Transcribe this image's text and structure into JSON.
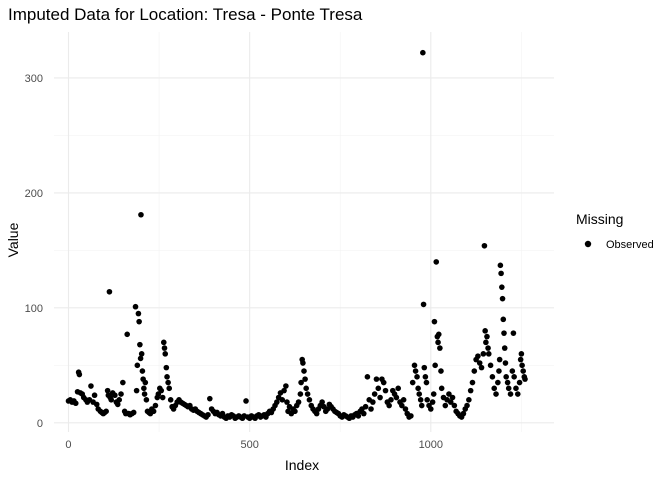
{
  "chart_data": {
    "type": "scatter",
    "title": "Imputed Data for Location: Tresa - Ponte Tresa",
    "xlabel": "Index",
    "ylabel": "Value",
    "xlim": [
      -40,
      1340
    ],
    "ylim": [
      -8,
      340
    ],
    "x_ticks": [
      0,
      500,
      1000
    ],
    "y_ticks": [
      0,
      100,
      200,
      300
    ],
    "grid": true,
    "legend": {
      "title": "Missing",
      "position": "right",
      "entries": [
        {
          "label": "Observed",
          "color": "#000000"
        }
      ]
    },
    "series": [
      {
        "name": "Observed",
        "color": "#000000",
        "points": [
          [
            0,
            19
          ],
          [
            5,
            20
          ],
          [
            10,
            18
          ],
          [
            15,
            19
          ],
          [
            20,
            17
          ],
          [
            25,
            27
          ],
          [
            28,
            44
          ],
          [
            30,
            42
          ],
          [
            33,
            26
          ],
          [
            38,
            25
          ],
          [
            42,
            22
          ],
          [
            48,
            20
          ],
          [
            52,
            18
          ],
          [
            58,
            20
          ],
          [
            62,
            32
          ],
          [
            68,
            18
          ],
          [
            72,
            24
          ],
          [
            78,
            16
          ],
          [
            82,
            12
          ],
          [
            88,
            10
          ],
          [
            92,
            9
          ],
          [
            96,
            8
          ],
          [
            100,
            9
          ],
          [
            104,
            10
          ],
          [
            108,
            28
          ],
          [
            110,
            24
          ],
          [
            113,
            114
          ],
          [
            115,
            22
          ],
          [
            118,
            20
          ],
          [
            122,
            26
          ],
          [
            128,
            24
          ],
          [
            132,
            18
          ],
          [
            136,
            16
          ],
          [
            140,
            20
          ],
          [
            145,
            25
          ],
          [
            150,
            35
          ],
          [
            155,
            10
          ],
          [
            158,
            8
          ],
          [
            162,
            77
          ],
          [
            166,
            8
          ],
          [
            170,
            7
          ],
          [
            175,
            8
          ],
          [
            180,
            9
          ],
          [
            185,
            101
          ],
          [
            188,
            28
          ],
          [
            190,
            50
          ],
          [
            193,
            95
          ],
          [
            195,
            88
          ],
          [
            197,
            68
          ],
          [
            199,
            56
          ],
          [
            200,
            181
          ],
          [
            202,
            60
          ],
          [
            204,
            45
          ],
          [
            206,
            38
          ],
          [
            208,
            30
          ],
          [
            210,
            25
          ],
          [
            212,
            35
          ],
          [
            215,
            20
          ],
          [
            218,
            10
          ],
          [
            222,
            9
          ],
          [
            226,
            8
          ],
          [
            230,
            12
          ],
          [
            235,
            10
          ],
          [
            240,
            15
          ],
          [
            245,
            22
          ],
          [
            248,
            25
          ],
          [
            252,
            30
          ],
          [
            256,
            28
          ],
          [
            260,
            22
          ],
          [
            263,
            70
          ],
          [
            265,
            65
          ],
          [
            267,
            60
          ],
          [
            270,
            48
          ],
          [
            272,
            40
          ],
          [
            275,
            35
          ],
          [
            278,
            30
          ],
          [
            282,
            20
          ],
          [
            286,
            14
          ],
          [
            290,
            12
          ],
          [
            295,
            15
          ],
          [
            300,
            18
          ],
          [
            305,
            20
          ],
          [
            310,
            18
          ],
          [
            315,
            17
          ],
          [
            320,
            16
          ],
          [
            325,
            15
          ],
          [
            330,
            14
          ],
          [
            335,
            15
          ],
          [
            340,
            12
          ],
          [
            345,
            11
          ],
          [
            350,
            12
          ],
          [
            355,
            10
          ],
          [
            360,
            9
          ],
          [
            365,
            8
          ],
          [
            370,
            7
          ],
          [
            375,
            6
          ],
          [
            380,
            5
          ],
          [
            385,
            7
          ],
          [
            390,
            21
          ],
          [
            395,
            12
          ],
          [
            400,
            10
          ],
          [
            405,
            8
          ],
          [
            410,
            9
          ],
          [
            415,
            7
          ],
          [
            420,
            6
          ],
          [
            425,
            8
          ],
          [
            430,
            5
          ],
          [
            435,
            4
          ],
          [
            440,
            6
          ],
          [
            445,
            5
          ],
          [
            450,
            7
          ],
          [
            455,
            6
          ],
          [
            460,
            4
          ],
          [
            465,
            5
          ],
          [
            470,
            6
          ],
          [
            475,
            5
          ],
          [
            480,
            4
          ],
          [
            485,
            6
          ],
          [
            490,
            19
          ],
          [
            495,
            5
          ],
          [
            500,
            4
          ],
          [
            505,
            6
          ],
          [
            510,
            5
          ],
          [
            515,
            4
          ],
          [
            520,
            6
          ],
          [
            525,
            7
          ],
          [
            530,
            5
          ],
          [
            535,
            6
          ],
          [
            540,
            7
          ],
          [
            545,
            5
          ],
          [
            550,
            8
          ],
          [
            555,
            10
          ],
          [
            560,
            9
          ],
          [
            565,
            12
          ],
          [
            570,
            15
          ],
          [
            575,
            18
          ],
          [
            580,
            22
          ],
          [
            585,
            26
          ],
          [
            590,
            20
          ],
          [
            595,
            28
          ],
          [
            600,
            32
          ],
          [
            603,
            18
          ],
          [
            606,
            10
          ],
          [
            610,
            14
          ],
          [
            615,
            8
          ],
          [
            620,
            12
          ],
          [
            625,
            10
          ],
          [
            630,
            15
          ],
          [
            635,
            18
          ],
          [
            640,
            25
          ],
          [
            642,
            35
          ],
          [
            645,
            55
          ],
          [
            647,
            52
          ],
          [
            650,
            45
          ],
          [
            653,
            38
          ],
          [
            656,
            30
          ],
          [
            660,
            25
          ],
          [
            665,
            20
          ],
          [
            670,
            15
          ],
          [
            675,
            12
          ],
          [
            680,
            10
          ],
          [
            685,
            8
          ],
          [
            690,
            12
          ],
          [
            695,
            15
          ],
          [
            700,
            18
          ],
          [
            705,
            14
          ],
          [
            710,
            10
          ],
          [
            715,
            12
          ],
          [
            720,
            16
          ],
          [
            725,
            14
          ],
          [
            730,
            12
          ],
          [
            735,
            10
          ],
          [
            740,
            9
          ],
          [
            745,
            8
          ],
          [
            750,
            6
          ],
          [
            755,
            5
          ],
          [
            760,
            7
          ],
          [
            765,
            6
          ],
          [
            770,
            5
          ],
          [
            775,
            4
          ],
          [
            780,
            6
          ],
          [
            785,
            5
          ],
          [
            790,
            7
          ],
          [
            795,
            8
          ],
          [
            800,
            6
          ],
          [
            805,
            10
          ],
          [
            810,
            12
          ],
          [
            815,
            8
          ],
          [
            820,
            14
          ],
          [
            825,
            40
          ],
          [
            830,
            20
          ],
          [
            835,
            12
          ],
          [
            840,
            18
          ],
          [
            845,
            25
          ],
          [
            850,
            38
          ],
          [
            855,
            30
          ],
          [
            860,
            22
          ],
          [
            865,
            38
          ],
          [
            870,
            35
          ],
          [
            875,
            28
          ],
          [
            880,
            18
          ],
          [
            885,
            15
          ],
          [
            890,
            20
          ],
          [
            895,
            28
          ],
          [
            900,
            25
          ],
          [
            905,
            22
          ],
          [
            910,
            30
          ],
          [
            915,
            18
          ],
          [
            920,
            15
          ],
          [
            925,
            20
          ],
          [
            930,
            12
          ],
          [
            935,
            8
          ],
          [
            940,
            5
          ],
          [
            945,
            6
          ],
          [
            950,
            35
          ],
          [
            955,
            50
          ],
          [
            958,
            45
          ],
          [
            962,
            40
          ],
          [
            965,
            30
          ],
          [
            968,
            25
          ],
          [
            972,
            20
          ],
          [
            975,
            15
          ],
          [
            978,
            322
          ],
          [
            980,
            103
          ],
          [
            982,
            48
          ],
          [
            985,
            40
          ],
          [
            988,
            35
          ],
          [
            990,
            20
          ],
          [
            995,
            15
          ],
          [
            1000,
            12
          ],
          [
            1005,
            18
          ],
          [
            1008,
            25
          ],
          [
            1010,
            88
          ],
          [
            1012,
            50
          ],
          [
            1015,
            140
          ],
          [
            1018,
            75
          ],
          [
            1020,
            70
          ],
          [
            1022,
            77
          ],
          [
            1025,
            65
          ],
          [
            1028,
            45
          ],
          [
            1030,
            30
          ],
          [
            1035,
            22
          ],
          [
            1040,
            15
          ],
          [
            1045,
            20
          ],
          [
            1050,
            25
          ],
          [
            1055,
            18
          ],
          [
            1060,
            22
          ],
          [
            1065,
            15
          ],
          [
            1070,
            10
          ],
          [
            1075,
            8
          ],
          [
            1080,
            6
          ],
          [
            1085,
            5
          ],
          [
            1090,
            8
          ],
          [
            1095,
            12
          ],
          [
            1100,
            15
          ],
          [
            1105,
            20
          ],
          [
            1110,
            28
          ],
          [
            1115,
            35
          ],
          [
            1120,
            45
          ],
          [
            1125,
            55
          ],
          [
            1130,
            58
          ],
          [
            1135,
            52
          ],
          [
            1140,
            48
          ],
          [
            1145,
            60
          ],
          [
            1148,
            154
          ],
          [
            1150,
            80
          ],
          [
            1152,
            70
          ],
          [
            1155,
            75
          ],
          [
            1158,
            65
          ],
          [
            1160,
            60
          ],
          [
            1165,
            50
          ],
          [
            1170,
            40
          ],
          [
            1175,
            30
          ],
          [
            1180,
            25
          ],
          [
            1185,
            35
          ],
          [
            1188,
            45
          ],
          [
            1190,
            55
          ],
          [
            1192,
            137
          ],
          [
            1194,
            130
          ],
          [
            1196,
            118
          ],
          [
            1198,
            108
          ],
          [
            1200,
            90
          ],
          [
            1202,
            78
          ],
          [
            1204,
            65
          ],
          [
            1206,
            52
          ],
          [
            1208,
            40
          ],
          [
            1212,
            35
          ],
          [
            1215,
            30
          ],
          [
            1220,
            25
          ],
          [
            1225,
            45
          ],
          [
            1228,
            78
          ],
          [
            1230,
            40
          ],
          [
            1235,
            30
          ],
          [
            1240,
            25
          ],
          [
            1245,
            35
          ],
          [
            1248,
            55
          ],
          [
            1250,
            60
          ],
          [
            1252,
            50
          ],
          [
            1255,
            45
          ],
          [
            1258,
            40
          ],
          [
            1260,
            38
          ]
        ]
      }
    ]
  }
}
